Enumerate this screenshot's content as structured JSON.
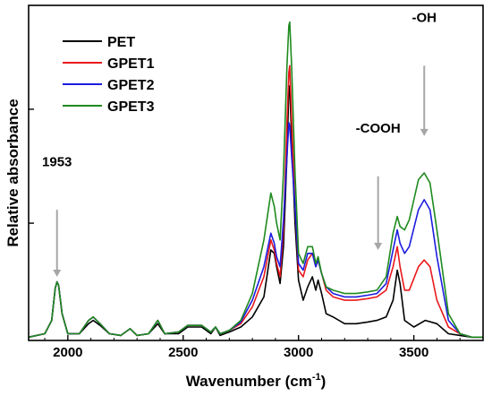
{
  "chart_data": {
    "type": "line",
    "xlabel": "Wavenumber (cm",
    "xlabel_sup": "-1",
    "xlabel_end": ")",
    "ylabel": "Relative absorbance",
    "xlim": [
      1830,
      3800
    ],
    "ylim": [
      0,
      1
    ],
    "x_ticks": [
      2000,
      2500,
      3000,
      3500
    ],
    "y_ticks_unlabeled": [
      0.35,
      0.69
    ],
    "grid": false,
    "legend_placement": "top-left",
    "annotations": [
      {
        "text": "1953",
        "x": 1953,
        "label_y": 0.52,
        "arrow_from": 0.39,
        "arrow_to": 0.19
      },
      {
        "text": "-COOH",
        "x": 3345,
        "label_y": 0.62,
        "arrow_from": 0.49,
        "arrow_to": 0.27
      },
      {
        "text": "-OH",
        "x": 3545,
        "label_y": 0.95,
        "arrow_from": 0.82,
        "arrow_to": 0.61
      }
    ],
    "series": [
      {
        "name": "PET",
        "color": "#000000",
        "points": [
          [
            1830,
            0.01
          ],
          [
            1900,
            0.02
          ],
          [
            1930,
            0.06
          ],
          [
            1945,
            0.155
          ],
          [
            1953,
            0.175
          ],
          [
            1960,
            0.165
          ],
          [
            1975,
            0.08
          ],
          [
            2000,
            0.02
          ],
          [
            2050,
            0.02
          ],
          [
            2090,
            0.05
          ],
          [
            2110,
            0.06
          ],
          [
            2140,
            0.045
          ],
          [
            2180,
            0.02
          ],
          [
            2230,
            0.015
          ],
          [
            2270,
            0.035
          ],
          [
            2300,
            0.015
          ],
          [
            2350,
            0.02
          ],
          [
            2390,
            0.05
          ],
          [
            2420,
            0.02
          ],
          [
            2480,
            0.02
          ],
          [
            2520,
            0.04
          ],
          [
            2580,
            0.04
          ],
          [
            2620,
            0.02
          ],
          [
            2640,
            0.04
          ],
          [
            2660,
            0.015
          ],
          [
            2700,
            0.025
          ],
          [
            2750,
            0.04
          ],
          [
            2800,
            0.07
          ],
          [
            2850,
            0.13
          ],
          [
            2880,
            0.27
          ],
          [
            2895,
            0.26
          ],
          [
            2905,
            0.22
          ],
          [
            2920,
            0.17
          ],
          [
            2935,
            0.28
          ],
          [
            2950,
            0.55
          ],
          [
            2958,
            0.75
          ],
          [
            2962,
            0.76
          ],
          [
            2970,
            0.6
          ],
          [
            2985,
            0.35
          ],
          [
            3000,
            0.18
          ],
          [
            3020,
            0.12
          ],
          [
            3040,
            0.16
          ],
          [
            3060,
            0.19
          ],
          [
            3075,
            0.15
          ],
          [
            3085,
            0.18
          ],
          [
            3100,
            0.14
          ],
          [
            3120,
            0.08
          ],
          [
            3150,
            0.07
          ],
          [
            3200,
            0.05
          ],
          [
            3250,
            0.05
          ],
          [
            3300,
            0.055
          ],
          [
            3340,
            0.06
          ],
          [
            3380,
            0.07
          ],
          [
            3410,
            0.12
          ],
          [
            3428,
            0.21
          ],
          [
            3440,
            0.17
          ],
          [
            3460,
            0.06
          ],
          [
            3500,
            0.04
          ],
          [
            3550,
            0.06
          ],
          [
            3600,
            0.05
          ],
          [
            3650,
            0.02
          ],
          [
            3700,
            0.015
          ],
          [
            3750,
            0.01
          ],
          [
            3800,
            0.01
          ]
        ]
      },
      {
        "name": "GPET1",
        "color": "#e8191b",
        "points": [
          [
            1830,
            0.01
          ],
          [
            1900,
            0.02
          ],
          [
            1930,
            0.06
          ],
          [
            1945,
            0.155
          ],
          [
            1953,
            0.175
          ],
          [
            1960,
            0.165
          ],
          [
            1975,
            0.08
          ],
          [
            2000,
            0.02
          ],
          [
            2050,
            0.02
          ],
          [
            2090,
            0.06
          ],
          [
            2110,
            0.07
          ],
          [
            2140,
            0.05
          ],
          [
            2180,
            0.02
          ],
          [
            2230,
            0.015
          ],
          [
            2270,
            0.035
          ],
          [
            2300,
            0.015
          ],
          [
            2350,
            0.02
          ],
          [
            2390,
            0.06
          ],
          [
            2420,
            0.02
          ],
          [
            2480,
            0.025
          ],
          [
            2520,
            0.045
          ],
          [
            2580,
            0.045
          ],
          [
            2620,
            0.025
          ],
          [
            2640,
            0.04
          ],
          [
            2660,
            0.02
          ],
          [
            2700,
            0.03
          ],
          [
            2750,
            0.05
          ],
          [
            2800,
            0.1
          ],
          [
            2850,
            0.19
          ],
          [
            2880,
            0.3
          ],
          [
            2895,
            0.27
          ],
          [
            2905,
            0.23
          ],
          [
            2920,
            0.19
          ],
          [
            2935,
            0.33
          ],
          [
            2950,
            0.65
          ],
          [
            2958,
            0.8
          ],
          [
            2962,
            0.82
          ],
          [
            2970,
            0.66
          ],
          [
            2985,
            0.4
          ],
          [
            3000,
            0.21
          ],
          [
            3020,
            0.19
          ],
          [
            3040,
            0.24
          ],
          [
            3060,
            0.26
          ],
          [
            3075,
            0.22
          ],
          [
            3085,
            0.24
          ],
          [
            3100,
            0.2
          ],
          [
            3120,
            0.15
          ],
          [
            3150,
            0.13
          ],
          [
            3200,
            0.12
          ],
          [
            3250,
            0.12
          ],
          [
            3300,
            0.125
          ],
          [
            3340,
            0.13
          ],
          [
            3380,
            0.15
          ],
          [
            3410,
            0.22
          ],
          [
            3428,
            0.28
          ],
          [
            3440,
            0.22
          ],
          [
            3460,
            0.15
          ],
          [
            3480,
            0.15
          ],
          [
            3520,
            0.22
          ],
          [
            3545,
            0.24
          ],
          [
            3570,
            0.22
          ],
          [
            3600,
            0.12
          ],
          [
            3650,
            0.04
          ],
          [
            3700,
            0.02
          ],
          [
            3750,
            0.01
          ],
          [
            3800,
            0.01
          ]
        ]
      },
      {
        "name": "GPET2",
        "color": "#1c1ce0",
        "points": [
          [
            1830,
            0.01
          ],
          [
            1900,
            0.02
          ],
          [
            1930,
            0.06
          ],
          [
            1945,
            0.155
          ],
          [
            1953,
            0.175
          ],
          [
            1960,
            0.165
          ],
          [
            1975,
            0.08
          ],
          [
            2000,
            0.02
          ],
          [
            2050,
            0.02
          ],
          [
            2090,
            0.06
          ],
          [
            2110,
            0.07
          ],
          [
            2140,
            0.05
          ],
          [
            2180,
            0.02
          ],
          [
            2230,
            0.015
          ],
          [
            2270,
            0.035
          ],
          [
            2300,
            0.015
          ],
          [
            2350,
            0.02
          ],
          [
            2390,
            0.06
          ],
          [
            2420,
            0.02
          ],
          [
            2480,
            0.025
          ],
          [
            2520,
            0.045
          ],
          [
            2580,
            0.045
          ],
          [
            2620,
            0.025
          ],
          [
            2640,
            0.04
          ],
          [
            2660,
            0.02
          ],
          [
            2700,
            0.03
          ],
          [
            2750,
            0.055
          ],
          [
            2800,
            0.12
          ],
          [
            2850,
            0.22
          ],
          [
            2880,
            0.32
          ],
          [
            2895,
            0.29
          ],
          [
            2905,
            0.25
          ],
          [
            2920,
            0.22
          ],
          [
            2935,
            0.36
          ],
          [
            2950,
            0.55
          ],
          [
            2958,
            0.65
          ],
          [
            2962,
            0.64
          ],
          [
            2970,
            0.55
          ],
          [
            2985,
            0.4
          ],
          [
            3000,
            0.23
          ],
          [
            3020,
            0.21
          ],
          [
            3040,
            0.26
          ],
          [
            3060,
            0.26
          ],
          [
            3075,
            0.22
          ],
          [
            3085,
            0.24
          ],
          [
            3100,
            0.2
          ],
          [
            3120,
            0.16
          ],
          [
            3150,
            0.14
          ],
          [
            3200,
            0.13
          ],
          [
            3250,
            0.13
          ],
          [
            3300,
            0.135
          ],
          [
            3340,
            0.14
          ],
          [
            3380,
            0.17
          ],
          [
            3410,
            0.27
          ],
          [
            3428,
            0.33
          ],
          [
            3440,
            0.29
          ],
          [
            3460,
            0.26
          ],
          [
            3480,
            0.28
          ],
          [
            3520,
            0.39
          ],
          [
            3545,
            0.42
          ],
          [
            3570,
            0.39
          ],
          [
            3600,
            0.25
          ],
          [
            3650,
            0.06
          ],
          [
            3700,
            0.02
          ],
          [
            3750,
            0.01
          ],
          [
            3800,
            0.01
          ]
        ]
      },
      {
        "name": "GPET3",
        "color": "#1e8a1e",
        "points": [
          [
            1830,
            0.01
          ],
          [
            1900,
            0.02
          ],
          [
            1930,
            0.06
          ],
          [
            1945,
            0.155
          ],
          [
            1953,
            0.175
          ],
          [
            1960,
            0.165
          ],
          [
            1975,
            0.08
          ],
          [
            2000,
            0.02
          ],
          [
            2050,
            0.02
          ],
          [
            2090,
            0.06
          ],
          [
            2110,
            0.07
          ],
          [
            2140,
            0.05
          ],
          [
            2180,
            0.02
          ],
          [
            2230,
            0.015
          ],
          [
            2270,
            0.035
          ],
          [
            2300,
            0.015
          ],
          [
            2350,
            0.02
          ],
          [
            2390,
            0.06
          ],
          [
            2420,
            0.02
          ],
          [
            2480,
            0.025
          ],
          [
            2520,
            0.045
          ],
          [
            2580,
            0.045
          ],
          [
            2620,
            0.025
          ],
          [
            2640,
            0.04
          ],
          [
            2660,
            0.02
          ],
          [
            2700,
            0.03
          ],
          [
            2750,
            0.06
          ],
          [
            2800,
            0.14
          ],
          [
            2850,
            0.3
          ],
          [
            2880,
            0.44
          ],
          [
            2895,
            0.4
          ],
          [
            2905,
            0.35
          ],
          [
            2920,
            0.3
          ],
          [
            2935,
            0.5
          ],
          [
            2950,
            0.82
          ],
          [
            2958,
            0.94
          ],
          [
            2962,
            0.95
          ],
          [
            2970,
            0.82
          ],
          [
            2985,
            0.5
          ],
          [
            3000,
            0.26
          ],
          [
            3020,
            0.23
          ],
          [
            3040,
            0.28
          ],
          [
            3060,
            0.28
          ],
          [
            3075,
            0.23
          ],
          [
            3085,
            0.25
          ],
          [
            3100,
            0.2
          ],
          [
            3120,
            0.16
          ],
          [
            3150,
            0.15
          ],
          [
            3200,
            0.14
          ],
          [
            3250,
            0.14
          ],
          [
            3300,
            0.145
          ],
          [
            3340,
            0.15
          ],
          [
            3380,
            0.19
          ],
          [
            3410,
            0.32
          ],
          [
            3428,
            0.37
          ],
          [
            3440,
            0.34
          ],
          [
            3460,
            0.33
          ],
          [
            3480,
            0.36
          ],
          [
            3520,
            0.48
          ],
          [
            3545,
            0.5
          ],
          [
            3570,
            0.47
          ],
          [
            3600,
            0.33
          ],
          [
            3650,
            0.08
          ],
          [
            3700,
            0.02
          ],
          [
            3750,
            0.01
          ],
          [
            3800,
            0.01
          ]
        ]
      }
    ]
  }
}
